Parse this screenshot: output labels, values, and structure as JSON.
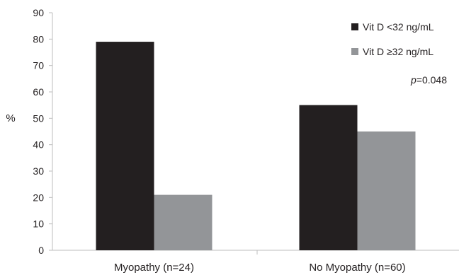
{
  "chart_data": {
    "type": "bar",
    "ylabel": "%",
    "ylim": [
      0,
      90
    ],
    "yticks": [
      0,
      10,
      20,
      30,
      40,
      50,
      60,
      70,
      80,
      90
    ],
    "categories": [
      "Myopathy (n=24)",
      "No Myopathy (n=60)"
    ],
    "series": [
      {
        "name": "Vit D <32 ng/mL",
        "color": "#231f20",
        "values": [
          79,
          55
        ]
      },
      {
        "name": "Vit D ≥32 ng/mL",
        "color": "#939598",
        "values": [
          21,
          45
        ]
      }
    ],
    "annotation": {
      "p_symbol": "p",
      "p_value": "=0.048"
    },
    "legend_position": "top-right",
    "grid": false
  }
}
